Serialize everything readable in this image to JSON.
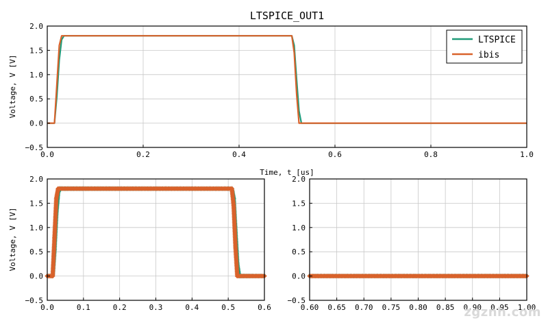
{
  "figure": {
    "colors": {
      "LTSPICE": "#1f9a78",
      "ibis": "#d9622b"
    },
    "watermark": "zgznh.com"
  },
  "chart_data": [
    {
      "type": "line",
      "title": "LTSPICE_OUT1",
      "xlabel": "Time, t [us]",
      "ylabel": "Voltage, V [V]",
      "xlim": [
        0,
        1.0
      ],
      "ylim": [
        -0.5,
        2.0
      ],
      "xticks": [
        "0.0",
        "0.2",
        "0.4",
        "0.6",
        "0.8",
        "1.0"
      ],
      "yticks": [
        "−0.5",
        "0.0",
        "0.5",
        "1.0",
        "1.5",
        "2.0"
      ],
      "grid": true,
      "legend": "top-right",
      "series": [
        {
          "name": "LTSPICE",
          "x": [
            0,
            0.015,
            0.02,
            0.025,
            0.03,
            0.035,
            0.51,
            0.515,
            0.52,
            0.525,
            0.53,
            1.0
          ],
          "y": [
            0,
            0,
            0.55,
            1.3,
            1.72,
            1.8,
            1.8,
            1.6,
            0.9,
            0.25,
            0.0,
            0.0
          ]
        },
        {
          "name": "ibis",
          "x": [
            0,
            0.015,
            0.02,
            0.025,
            0.03,
            0.51,
            0.515,
            0.52,
            0.525,
            1.0
          ],
          "y": [
            0,
            0,
            0.8,
            1.6,
            1.8,
            1.8,
            1.45,
            0.6,
            0.0,
            0.0
          ]
        }
      ]
    },
    {
      "type": "line",
      "title": "",
      "xlabel": "",
      "ylabel": "Voltage, V [V]",
      "xlim": [
        0,
        0.6
      ],
      "ylim": [
        -0.5,
        2.0
      ],
      "xticks": [
        "0.0",
        "0.1",
        "0.2",
        "0.3",
        "0.4",
        "0.5",
        "0.6"
      ],
      "yticks": [
        "−0.5",
        "0.0",
        "0.5",
        "1.0",
        "1.5",
        "2.0"
      ],
      "grid": true,
      "markers": true,
      "series": [
        {
          "name": "LTSPICE",
          "x": [
            0,
            0.015,
            0.02,
            0.025,
            0.03,
            0.035,
            0.51,
            0.515,
            0.52,
            0.525,
            0.53,
            0.6
          ],
          "y": [
            0,
            0,
            0.55,
            1.3,
            1.72,
            1.8,
            1.8,
            1.6,
            0.9,
            0.25,
            0.0,
            0.0
          ]
        },
        {
          "name": "ibis",
          "x": [
            0,
            0.015,
            0.02,
            0.025,
            0.03,
            0.51,
            0.515,
            0.52,
            0.525,
            0.6
          ],
          "y": [
            0,
            0,
            0.8,
            1.6,
            1.8,
            1.8,
            1.45,
            0.6,
            0.0,
            0.0
          ]
        }
      ]
    },
    {
      "type": "line",
      "title": "",
      "xlabel": "",
      "ylabel": "",
      "xlim": [
        0.6,
        1.0
      ],
      "ylim": [
        -0.5,
        2.0
      ],
      "xticks": [
        "0.60",
        "0.65",
        "0.70",
        "0.75",
        "0.80",
        "0.85",
        "0.90",
        "0.95",
        "1.00"
      ],
      "yticks": [
        "−0.5",
        "0.0",
        "0.5",
        "1.0",
        "1.5",
        "2.0"
      ],
      "grid": true,
      "markers": true,
      "series": [
        {
          "name": "LTSPICE",
          "x": [
            0.6,
            1.0
          ],
          "y": [
            0,
            0
          ]
        },
        {
          "name": "ibis",
          "x": [
            0.6,
            1.0
          ],
          "y": [
            0,
            0
          ]
        }
      ]
    }
  ]
}
